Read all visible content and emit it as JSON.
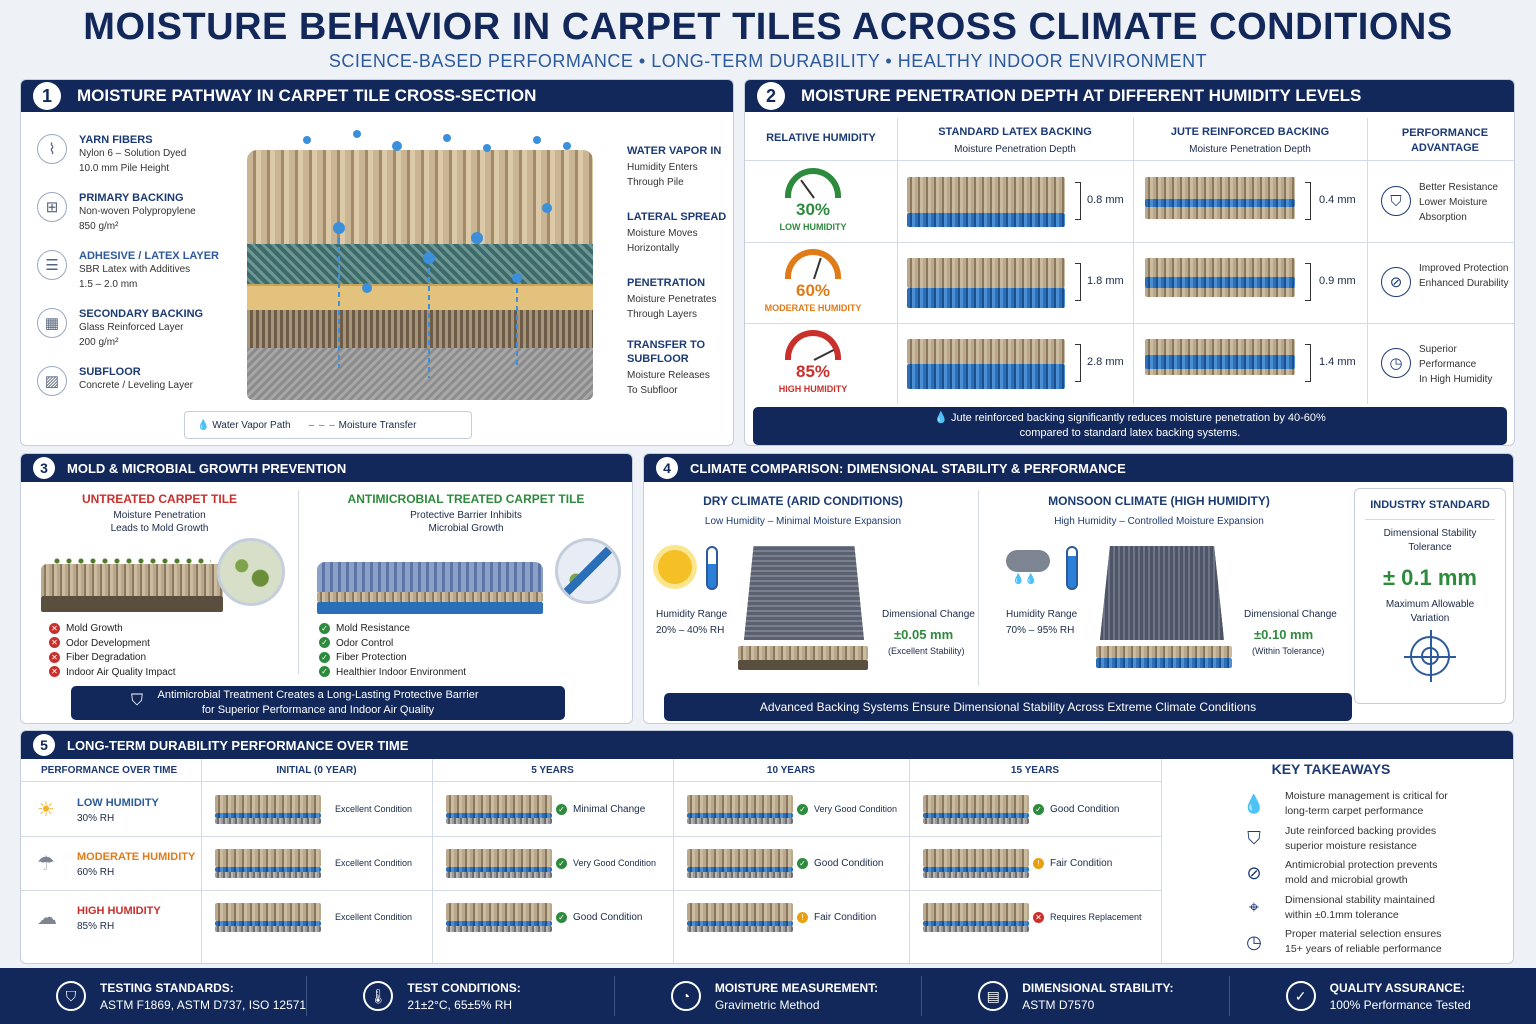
{
  "header": {
    "title": "MOISTURE BEHAVIOR IN CARPET TILES ACROSS CLIMATE CONDITIONS",
    "subtitle": "SCIENCE-BASED PERFORMANCE • LONG-TERM DURABILITY • HEALTHY INDOOR ENVIRONMENT"
  },
  "colors": {
    "navy": "#12285a",
    "green": "#2e8b3e",
    "orange": "#e07b1a",
    "red": "#c9302c",
    "blue": "#2b6fb8"
  },
  "s1": {
    "num": "1",
    "title": "MOISTURE PATHWAY IN CARPET TILE CROSS-SECTION",
    "left_labels": [
      {
        "icon": "fiber-icon",
        "title": "YARN FIBERS",
        "l1": "Nylon 6 – Solution Dyed",
        "l2": "10.0 mm Pile Height"
      },
      {
        "icon": "mesh-icon",
        "title": "PRIMARY BACKING",
        "l1": "Non-woven Polypropylene",
        "l2": "850 g/m²"
      },
      {
        "icon": "layers-icon",
        "title": "ADHESIVE / LATEX LAYER",
        "l1": "SBR Latex with Additives",
        "l2": "1.5 – 2.0 mm"
      },
      {
        "icon": "grid-icon",
        "title": "SECONDARY BACKING",
        "l1": "Glass Reinforced Layer",
        "l2": "200 g/m²"
      },
      {
        "icon": "concrete-icon",
        "title": "SUBFLOOR",
        "l1": "Concrete / Leveling Layer",
        "l2": ""
      }
    ],
    "right_labels": [
      {
        "title": "WATER VAPOR IN",
        "l1": "Humidity Enters",
        "l2": "Through Pile"
      },
      {
        "title": "LATERAL SPREAD",
        "l1": "Moisture Moves",
        "l2": "Horizontally"
      },
      {
        "title": "PENETRATION",
        "l1": "Moisture Penetrates",
        "l2": "Through Layers"
      },
      {
        "title": "TRANSFER TO SUBFLOOR",
        "l1": "Moisture Releases",
        "l2": "To Subfloor"
      }
    ],
    "legend": {
      "vapor": "Water Vapor Path",
      "transfer": "Moisture Transfer"
    }
  },
  "s2": {
    "num": "2",
    "title": "MOISTURE PENETRATION DEPTH AT DIFFERENT HUMIDITY LEVELS",
    "col_rh": "RELATIVE HUMIDITY",
    "col_latex": "STANDARD LATEX BACKING",
    "col_latex_sub": "Moisture Penetration Depth",
    "col_jute": "JUTE REINFORCED BACKING",
    "col_jute_sub": "Moisture Penetration Depth",
    "col_perf": "PERFORMANCE ADVANTAGE",
    "rows": [
      {
        "pct": "30%",
        "label": "LOW HUMIDITY",
        "color": "#2e8b3e",
        "latex": "0.8 mm",
        "jute": "0.4 mm",
        "perf1": "Better Resistance",
        "perf2": "Lower Moisture",
        "perf3": "Absorption",
        "level": 0.3
      },
      {
        "pct": "60%",
        "label": "MODERATE HUMIDITY",
        "color": "#e07b1a",
        "latex": "1.8 mm",
        "jute": "0.9 mm",
        "perf1": "Improved Protection",
        "perf2": "Enhanced Durability",
        "perf3": "",
        "level": 0.6
      },
      {
        "pct": "85%",
        "label": "HIGH HUMIDITY",
        "color": "#c9302c",
        "latex": "2.8 mm",
        "jute": "1.4 mm",
        "perf1": "Superior Performance",
        "perf2": "In High Humidity",
        "perf3": "",
        "level": 0.85
      }
    ],
    "banner1": "Jute reinforced backing significantly reduces moisture penetration by 40-60%",
    "banner2": "compared to standard latex backing systems."
  },
  "s3": {
    "num": "3",
    "title": "MOLD & MICROBIAL GROWTH PREVENTION",
    "untreated_title": "UNTREATED CARPET TILE",
    "untreated_sub1": "Moisture Penetration",
    "untreated_sub2": "Leads to Mold Growth",
    "untreated_items": [
      "Mold Growth",
      "Odor Development",
      "Fiber Degradation",
      "Indoor Air Quality Impact"
    ],
    "treated_title": "ANTIMICROBIAL TREATED CARPET TILE",
    "treated_sub1": "Protective Barrier Inhibits",
    "treated_sub2": "Microbial Growth",
    "treated_items": [
      "Mold Resistance",
      "Odor Control",
      "Fiber Protection",
      "Healthier Indoor Environment"
    ],
    "banner1": "Antimicrobial Treatment Creates a Long-Lasting Protective Barrier",
    "banner2": "for Superior Performance and Indoor Air Quality"
  },
  "s4": {
    "num": "4",
    "title": "CLIMATE COMPARISON: DIMENSIONAL STABILITY & PERFORMANCE",
    "dry_title": "DRY CLIMATE (ARID CONDITIONS)",
    "dry_sub": "Low Humidity – Minimal Moisture Expansion",
    "dry_range_label": "Humidity Range",
    "dry_range": "20% – 40% RH",
    "dry_change_label": "Dimensional Change",
    "dry_change": "±0.05 mm",
    "dry_note": "(Excellent Stability)",
    "wet_title": "MONSOON CLIMATE (HIGH HUMIDITY)",
    "wet_sub": "High Humidity – Controlled Moisture Expansion",
    "wet_range_label": "Humidity Range",
    "wet_range": "70% – 95% RH",
    "wet_change_label": "Dimensional Change",
    "wet_change": "±0.10 mm",
    "wet_note": "(Within Tolerance)",
    "std_title": "INDUSTRY STANDARD",
    "std_sub1": "Dimensional Stability",
    "std_sub2": "Tolerance",
    "std_value": "± 0.1 mm",
    "std_note1": "Maximum Allowable",
    "std_note2": "Variation",
    "banner": "Advanced Backing Systems Ensure Dimensional Stability Across Extreme Climate Conditions"
  },
  "s5": {
    "num": "5",
    "title": "LONG-TERM DURABILITY PERFORMANCE OVER TIME",
    "col0": "PERFORMANCE OVER TIME",
    "cols": [
      "INITIAL (0 YEAR)",
      "5 YEARS",
      "10 YEARS",
      "15 YEARS"
    ],
    "rows": [
      {
        "label": "LOW HUMIDITY",
        "rh": "30% RH",
        "color": "#2c5a9c",
        "icon": "sun-icon",
        "cells": [
          {
            "t": "Excellent Condition",
            "s": "none"
          },
          {
            "t": "Minimal Change",
            "s": "ok"
          },
          {
            "t": "Very Good Condition",
            "s": "ok"
          },
          {
            "t": "Good Condition",
            "s": "ok"
          }
        ]
      },
      {
        "label": "MODERATE HUMIDITY",
        "rh": "60% RH",
        "color": "#e07b1a",
        "icon": "cloud-rain-icon",
        "cells": [
          {
            "t": "Excellent Condition",
            "s": "none"
          },
          {
            "t": "Very Good Condition",
            "s": "ok"
          },
          {
            "t": "Good Condition",
            "s": "ok"
          },
          {
            "t": "Fair Condition",
            "s": "warn"
          }
        ]
      },
      {
        "label": "HIGH HUMIDITY",
        "rh": "85% RH",
        "color": "#c9302c",
        "icon": "storm-cloud-icon",
        "cells": [
          {
            "t": "Excellent Condition",
            "s": "none"
          },
          {
            "t": "Good Condition",
            "s": "ok"
          },
          {
            "t": "Fair Condition",
            "s": "warn"
          },
          {
            "t": "Requires Replacement",
            "s": "bad"
          }
        ]
      }
    ],
    "takeaways_title": "KEY TAKEAWAYS",
    "takeaways": [
      {
        "icon": "droplet-icon",
        "l1": "Moisture management is critical for",
        "l2": "long-term carpet performance"
      },
      {
        "icon": "shield-icon",
        "l1": "Jute reinforced backing provides",
        "l2": "superior moisture resistance"
      },
      {
        "icon": "no-microbe-icon",
        "l1": "Antimicrobial protection prevents",
        "l2": "mold and microbial growth"
      },
      {
        "icon": "target-icon",
        "l1": "Dimensional stability maintained",
        "l2": "within ±0.1mm tolerance"
      },
      {
        "icon": "clock-icon",
        "l1": "Proper material selection ensures",
        "l2": "15+ years of reliable performance"
      }
    ]
  },
  "footer": [
    {
      "icon": "shield-check-icon",
      "title": "TESTING STANDARDS:",
      "value": "ASTM F1869, ASTM D737, ISO 12571"
    },
    {
      "icon": "thermometer-icon",
      "title": "TEST CONDITIONS:",
      "value": "21±2°C, 65±5% RH"
    },
    {
      "icon": "gauge-icon",
      "title": "MOISTURE MEASUREMENT:",
      "value": "Gravimetric Method"
    },
    {
      "icon": "document-icon",
      "title": "DIMENSIONAL STABILITY:",
      "value": "ASTM D7570"
    },
    {
      "icon": "check-circle-icon",
      "title": "QUALITY ASSURANCE:",
      "value": "100% Performance Tested"
    }
  ]
}
